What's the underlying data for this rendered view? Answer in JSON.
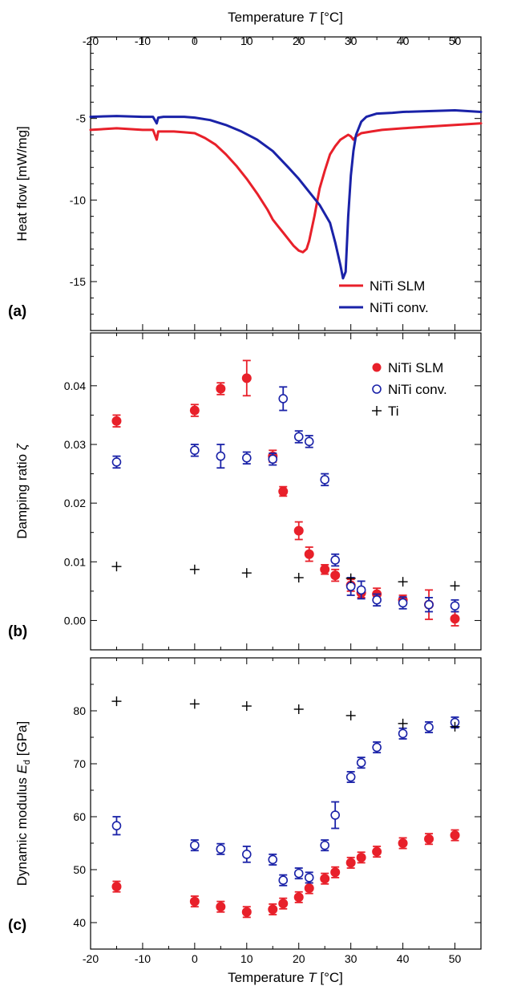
{
  "chart_data": [
    {
      "panel": "a",
      "type": "line",
      "panel_label": "(a)",
      "xlabel": "Temperature T [°C]",
      "ylabel": "Heat flow [mW/mg]",
      "xlim": [
        -20,
        55
      ],
      "ylim": [
        -18,
        0
      ],
      "xticks": [
        "-20",
        "-10",
        "0",
        "10",
        "20",
        "30",
        "40",
        "50"
      ],
      "yticks": [
        "-5",
        "-10",
        "-15"
      ],
      "legend_position": "bottom-right",
      "series": [
        {
          "name": "NiTi SLM",
          "color": "#e8202a",
          "x": [
            -20,
            -15,
            -10,
            -8,
            -7.3,
            -7,
            -6,
            -4,
            -2,
            0,
            2,
            4,
            6,
            8,
            10,
            12,
            14,
            15,
            16,
            17,
            18,
            19,
            20,
            20.8,
            21.5,
            22,
            23,
            24,
            25,
            26,
            27,
            28,
            29,
            29.5,
            30,
            30.5,
            31,
            32,
            34,
            36,
            40,
            45,
            50,
            55
          ],
          "y": [
            -5.7,
            -5.6,
            -5.7,
            -5.7,
            -6.3,
            -5.8,
            -5.8,
            -5.8,
            -5.85,
            -5.9,
            -6.2,
            -6.6,
            -7.2,
            -7.9,
            -8.7,
            -9.6,
            -10.6,
            -11.2,
            -11.6,
            -12.0,
            -12.4,
            -12.8,
            -13.1,
            -13.2,
            -13.0,
            -12.5,
            -11.0,
            -9.3,
            -8.2,
            -7.2,
            -6.7,
            -6.3,
            -6.1,
            -6.0,
            -6.1,
            -6.3,
            -6.1,
            -5.9,
            -5.8,
            -5.7,
            -5.6,
            -5.5,
            -5.4,
            -5.3
          ]
        },
        {
          "name": "NiTi conv.",
          "color": "#1a22a8",
          "x": [
            -20,
            -15,
            -10,
            -8,
            -7.3,
            -7,
            -6,
            -4,
            -2,
            0,
            3,
            6,
            9,
            12,
            15,
            18,
            20,
            22,
            24,
            26,
            27,
            28,
            28.5,
            29,
            29.5,
            30,
            30.5,
            31,
            32,
            33,
            35,
            38,
            40,
            45,
            50,
            55
          ],
          "y": [
            -4.9,
            -4.85,
            -4.9,
            -4.9,
            -5.3,
            -4.95,
            -4.9,
            -4.9,
            -4.9,
            -4.95,
            -5.1,
            -5.4,
            -5.8,
            -6.3,
            -7.0,
            -8.0,
            -8.7,
            -9.5,
            -10.3,
            -11.4,
            -12.6,
            -14.0,
            -14.8,
            -14.4,
            -11.0,
            -8.5,
            -7.0,
            -6.0,
            -5.2,
            -4.9,
            -4.7,
            -4.65,
            -4.6,
            -4.55,
            -4.5,
            -4.6
          ]
        }
      ]
    },
    {
      "panel": "b",
      "type": "scatter",
      "panel_label": "(b)",
      "xlabel": "",
      "ylabel": "Damping ratio ζ",
      "xlim": [
        -20,
        55
      ],
      "ylim": [
        -0.005,
        0.049
      ],
      "xticks": [
        "-20",
        "-10",
        "0",
        "10",
        "20",
        "30",
        "40",
        "50"
      ],
      "yticks": [
        "0.00",
        "0.01",
        "0.02",
        "0.03",
        "0.04"
      ],
      "legend_position": "top-right",
      "series": [
        {
          "name": "NiTi SLM",
          "marker": "filled-circle",
          "color": "#e8202a",
          "x": [
            -15,
            0,
            5,
            10,
            15,
            17,
            20,
            22,
            25,
            27,
            30,
            32,
            35,
            40,
            45,
            50
          ],
          "y": [
            0.034,
            0.0358,
            0.0395,
            0.0413,
            0.028,
            0.022,
            0.0153,
            0.0113,
            0.0087,
            0.0077,
            0.006,
            0.0047,
            0.0045,
            0.0035,
            0.0027,
            0.0003
          ],
          "err": [
            0.001,
            0.001,
            0.001,
            0.003,
            0.001,
            0.0008,
            0.0015,
            0.0012,
            0.0008,
            0.001,
            0.001,
            0.0008,
            0.001,
            0.0008,
            0.0025,
            0.0012
          ]
        },
        {
          "name": "NiTi conv.",
          "marker": "open-circle",
          "color": "#1a22a8",
          "x": [
            -15,
            0,
            5,
            10,
            15,
            17,
            20,
            22,
            25,
            27,
            30,
            32,
            35,
            40,
            45,
            50
          ],
          "y": [
            0.027,
            0.029,
            0.028,
            0.0277,
            0.0275,
            0.0378,
            0.0313,
            0.0305,
            0.024,
            0.0103,
            0.0058,
            0.0052,
            0.0035,
            0.003,
            0.0027,
            0.0025
          ],
          "err": [
            0.001,
            0.001,
            0.002,
            0.001,
            0.001,
            0.002,
            0.001,
            0.001,
            0.001,
            0.001,
            0.0015,
            0.0015,
            0.001,
            0.001,
            0.0012,
            0.001
          ]
        },
        {
          "name": "Ti",
          "marker": "plus",
          "color": "#000000",
          "x": [
            -15,
            0,
            10,
            20,
            30,
            40,
            50
          ],
          "y": [
            0.0092,
            0.0087,
            0.0081,
            0.0073,
            0.0072,
            0.0066,
            0.0059
          ]
        }
      ]
    },
    {
      "panel": "c",
      "type": "scatter",
      "panel_label": "(c)",
      "xlabel": "Temperature T [°C]",
      "ylabel": "Dynamic modulus Ed [GPa]",
      "xlim": [
        -20,
        55
      ],
      "ylim": [
        35,
        90
      ],
      "xticks": [
        "-20",
        "-10",
        "0",
        "10",
        "20",
        "30",
        "40",
        "50"
      ],
      "yticks": [
        "40",
        "50",
        "60",
        "70",
        "80"
      ],
      "series": [
        {
          "name": "NiTi SLM",
          "marker": "filled-circle",
          "color": "#e8202a",
          "x": [
            -15,
            0,
            5,
            10,
            15,
            17,
            20,
            22,
            25,
            27,
            30,
            32,
            35,
            40,
            45,
            50
          ],
          "y": [
            46.8,
            44.0,
            43.0,
            42.0,
            42.5,
            43.6,
            44.8,
            46.5,
            48.3,
            49.5,
            51.3,
            52.3,
            53.4,
            55.0,
            55.8,
            56.5
          ],
          "err": [
            1.0,
            1.0,
            1.0,
            1.0,
            1.0,
            1.0,
            1.0,
            1.0,
            1.0,
            1.0,
            1.0,
            1.0,
            1.0,
            1.0,
            1.0,
            1.0
          ]
        },
        {
          "name": "NiTi conv.",
          "marker": "open-circle",
          "color": "#1a22a8",
          "x": [
            -15,
            0,
            5,
            10,
            15,
            17,
            20,
            22,
            25,
            27,
            30,
            32,
            35,
            40,
            45,
            50
          ],
          "y": [
            58.3,
            54.6,
            53.9,
            52.9,
            51.9,
            48.0,
            49.3,
            48.5,
            54.6,
            60.3,
            67.5,
            70.2,
            73.1,
            75.7,
            76.9,
            77.8
          ],
          "err": [
            1.7,
            1.0,
            1.0,
            1.5,
            1.0,
            1.0,
            1.0,
            1.0,
            1.0,
            2.5,
            1.0,
            1.0,
            1.0,
            1.0,
            1.0,
            1.0
          ]
        },
        {
          "name": "Ti",
          "marker": "plus",
          "color": "#000000",
          "x": [
            -15,
            0,
            10,
            20,
            30,
            40,
            50
          ],
          "y": [
            81.8,
            81.3,
            80.9,
            80.3,
            79.1,
            77.6,
            77.0
          ]
        }
      ]
    }
  ]
}
